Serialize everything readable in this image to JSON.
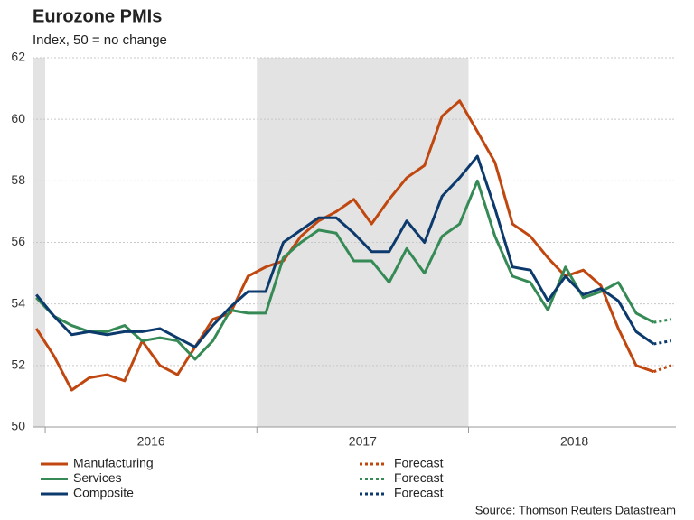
{
  "chart_data": {
    "type": "line",
    "title": "Eurozone PMIs",
    "subtitle": "Index, 50 = no change",
    "source": "Source: Thomson Reuters Datastream",
    "x": [
      2015.958,
      2016.042,
      2016.125,
      2016.208,
      2016.292,
      2016.375,
      2016.458,
      2016.542,
      2016.625,
      2016.708,
      2016.792,
      2016.875,
      2016.958,
      2017.042,
      2017.125,
      2017.208,
      2017.292,
      2017.375,
      2017.458,
      2017.542,
      2017.625,
      2017.708,
      2017.792,
      2017.875,
      2017.958,
      2018.042,
      2018.125,
      2018.208,
      2018.292,
      2018.375,
      2018.458,
      2018.542,
      2018.625,
      2018.708,
      2018.792,
      2018.875,
      2018.958
    ],
    "xlim": [
      2015.94,
      2018.98
    ],
    "xticks": [
      2016,
      2017,
      2018
    ],
    "shaded_ranges": [
      [
        2015.94,
        2016.0
      ],
      [
        2017.0,
        2018.0
      ]
    ],
    "ylim": [
      50,
      62
    ],
    "yticks": [
      50,
      52,
      54,
      56,
      58,
      60,
      62
    ],
    "grid": true,
    "series": [
      {
        "name": "Manufacturing",
        "color": "#c0470f",
        "forecast_name": "Forecast",
        "values": [
          53.2,
          52.3,
          51.2,
          51.6,
          51.7,
          51.5,
          52.8,
          52.0,
          51.7,
          52.6,
          53.5,
          53.7,
          54.9,
          55.2,
          55.4,
          56.2,
          56.7,
          57.0,
          57.4,
          56.6,
          57.4,
          58.1,
          58.5,
          60.1,
          60.6,
          59.6,
          58.6,
          56.6,
          56.2,
          55.5,
          54.9,
          55.1,
          54.6,
          53.2,
          52.0,
          51.8,
          null
        ],
        "forecast": [
          null,
          null,
          null,
          null,
          null,
          null,
          null,
          null,
          null,
          null,
          null,
          null,
          null,
          null,
          null,
          null,
          null,
          null,
          null,
          null,
          null,
          null,
          null,
          null,
          null,
          null,
          null,
          null,
          null,
          null,
          null,
          null,
          null,
          null,
          null,
          null,
          52.0
        ]
      },
      {
        "name": "Services",
        "color": "#358a55",
        "forecast_name": "Forecast",
        "values": [
          54.2,
          53.6,
          53.3,
          53.1,
          53.1,
          53.3,
          52.8,
          52.9,
          52.8,
          52.2,
          52.8,
          53.8,
          53.7,
          53.7,
          55.5,
          56.0,
          56.4,
          56.3,
          55.4,
          55.4,
          54.7,
          55.8,
          55.0,
          56.2,
          56.6,
          58.0,
          56.2,
          54.9,
          54.7,
          53.8,
          55.2,
          54.2,
          54.4,
          54.7,
          53.7,
          53.4,
          null
        ],
        "forecast": [
          null,
          null,
          null,
          null,
          null,
          null,
          null,
          null,
          null,
          null,
          null,
          null,
          null,
          null,
          null,
          null,
          null,
          null,
          null,
          null,
          null,
          null,
          null,
          null,
          null,
          null,
          null,
          null,
          null,
          null,
          null,
          null,
          null,
          null,
          null,
          null,
          53.5
        ]
      },
      {
        "name": "Composite",
        "color": "#0c3a6c",
        "forecast_name": "Forecast",
        "values": [
          54.3,
          53.6,
          53.0,
          53.1,
          53.0,
          53.1,
          53.1,
          53.2,
          52.9,
          52.6,
          53.3,
          53.9,
          54.4,
          54.4,
          56.0,
          56.4,
          56.8,
          56.8,
          56.3,
          55.7,
          55.7,
          56.7,
          56.0,
          57.5,
          58.1,
          58.8,
          57.1,
          55.2,
          55.1,
          54.1,
          54.9,
          54.3,
          54.5,
          54.1,
          53.1,
          52.7,
          null
        ],
        "forecast": [
          null,
          null,
          null,
          null,
          null,
          null,
          null,
          null,
          null,
          null,
          null,
          null,
          null,
          null,
          null,
          null,
          null,
          null,
          null,
          null,
          null,
          null,
          null,
          null,
          null,
          null,
          null,
          null,
          null,
          null,
          null,
          null,
          null,
          null,
          null,
          null,
          52.8
        ]
      }
    ]
  }
}
